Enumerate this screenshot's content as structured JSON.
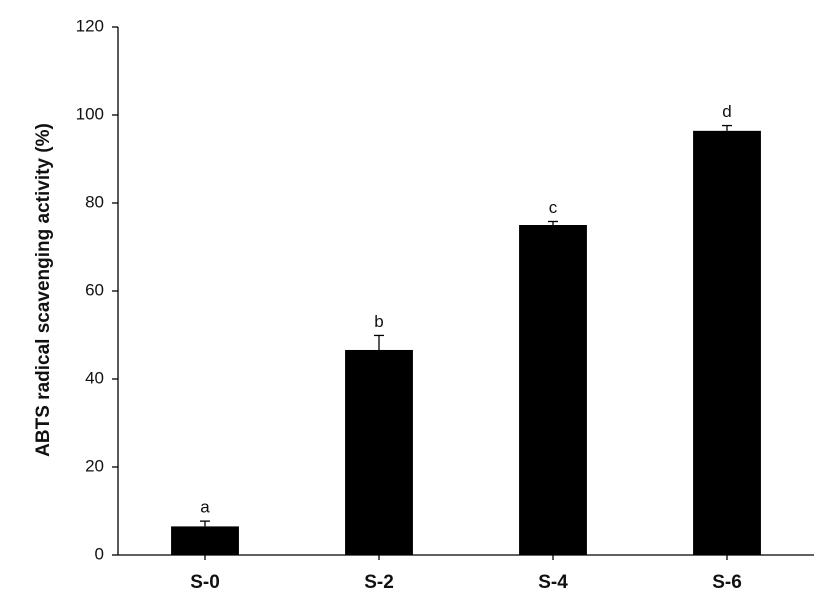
{
  "chart_data": {
    "type": "bar",
    "y_label": "ABTS radical  scavenging activity (%)",
    "categories": [
      "S-0",
      "S-2",
      "S-4",
      "S-6"
    ],
    "values": [
      6.5,
      46.6,
      75.0,
      96.4
    ],
    "errors": [
      1.2,
      3.3,
      0.8,
      1.2
    ],
    "value_labels": [
      "a",
      "b",
      "c",
      "d"
    ],
    "color": "#000000",
    "ylim": [
      0,
      120
    ],
    "yticks": [
      0,
      20,
      40,
      60,
      80,
      100,
      120
    ],
    "grid": false
  }
}
